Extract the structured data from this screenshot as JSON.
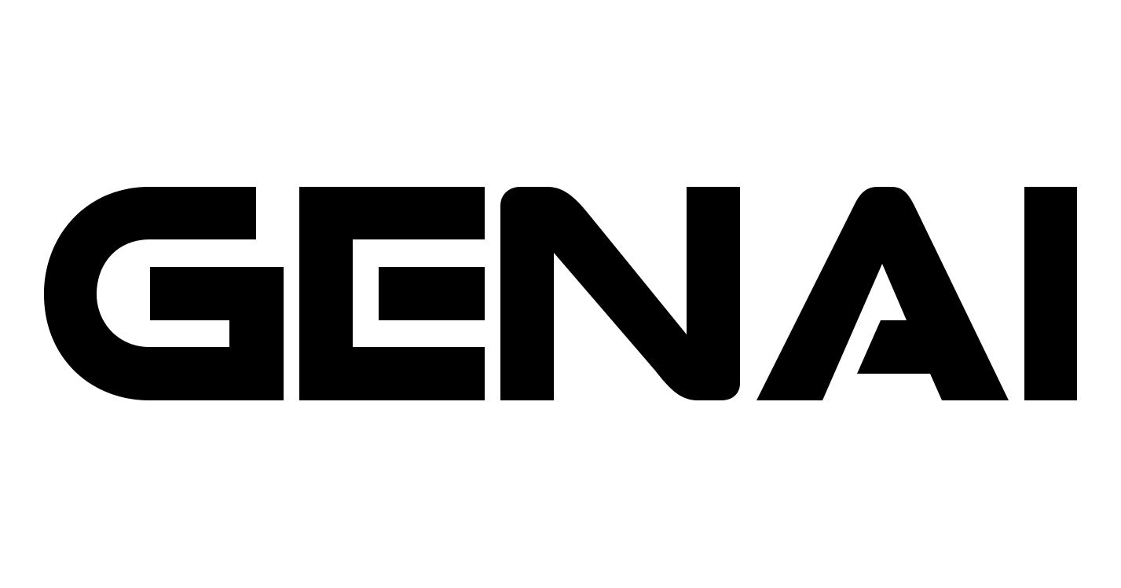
{
  "logo": {
    "text": "GENAI",
    "letters": [
      "G",
      "E",
      "N",
      "A",
      "I"
    ],
    "color": "#000000",
    "background": "#ffffff"
  }
}
